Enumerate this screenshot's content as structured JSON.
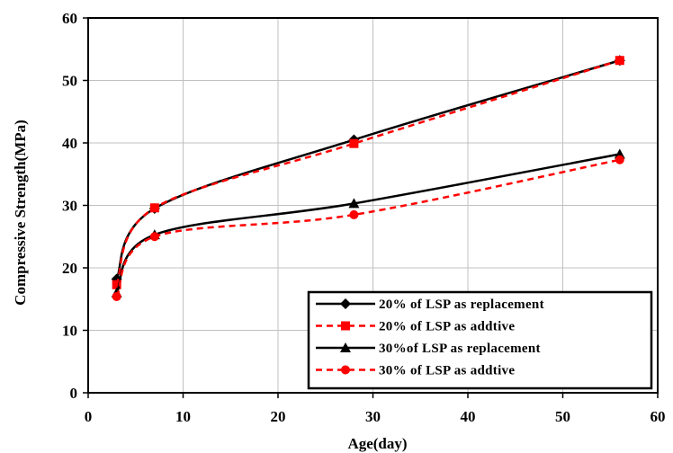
{
  "chart_data": {
    "type": "line",
    "title": "",
    "xlabel": "Age(day)",
    "ylabel": "Compressive Strength(MPa)",
    "xlim": [
      0,
      60
    ],
    "ylim": [
      0,
      60
    ],
    "xticks": [
      "0",
      "10",
      "20",
      "30",
      "40",
      "50",
      "60"
    ],
    "yticks": [
      "0",
      "10",
      "20",
      "30",
      "40",
      "50",
      "60"
    ],
    "grid": true,
    "legend_position": "bottom-right",
    "series": [
      {
        "name": "20% of LSP as replacement",
        "color": "#000000",
        "line_style": "solid",
        "marker": "diamond",
        "x": [
          3,
          7,
          28,
          56
        ],
        "y": [
          18.2,
          29.5,
          40.5,
          53.2
        ]
      },
      {
        "name": "20% of LSP as addtive",
        "color": "#ff0000",
        "line_style": "dashed",
        "marker": "square",
        "x": [
          3,
          7,
          28,
          56
        ],
        "y": [
          17.3,
          29.6,
          39.9,
          53.2
        ]
      },
      {
        "name": "30%of LSP as replacement",
        "color": "#000000",
        "line_style": "solid",
        "marker": "triangle",
        "x": [
          3,
          7,
          28,
          56
        ],
        "y": [
          16.0,
          25.3,
          30.3,
          38.2
        ]
      },
      {
        "name": "30% of LSP as addtive",
        "color": "#ff0000",
        "line_style": "dashed",
        "marker": "circle",
        "x": [
          3,
          7,
          28,
          56
        ],
        "y": [
          15.4,
          25.0,
          28.5,
          37.3
        ]
      }
    ]
  }
}
